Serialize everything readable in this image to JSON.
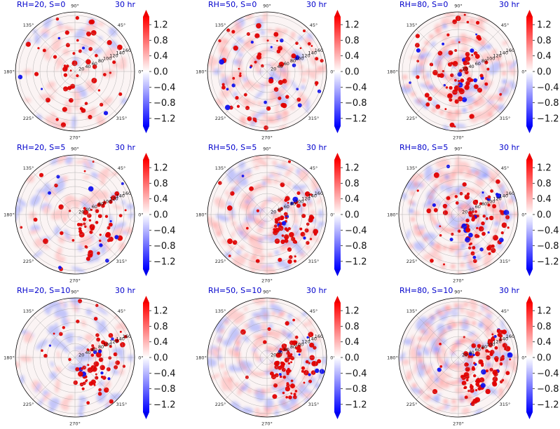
{
  "figure": {
    "time_label": "30 hr",
    "colorbar": {
      "colormap": "bwr",
      "vmin": -1.4,
      "vmax": 1.4,
      "extend": "both",
      "ticks": [
        1.2,
        0.8,
        0.4,
        0.0,
        -0.4,
        -0.8,
        -1.2
      ],
      "tick_labels": [
        "1.2",
        "0.8",
        "0.4",
        "0.0",
        "−0.4",
        "−0.8",
        "−1.2"
      ]
    },
    "polar_axes": {
      "angle_labels": [
        "90°",
        "45°",
        "0°",
        "315°",
        "270°",
        "225°",
        "180°",
        "135°"
      ],
      "radial_labels": [
        "20",
        "40",
        "60",
        "80",
        "100",
        "120",
        "140",
        "160"
      ]
    }
  },
  "chart_data": [
    {
      "type": "heatmap",
      "title": "RH=20, S=0",
      "time": "30 hr",
      "relative_humidity": 20,
      "shear": 0
    },
    {
      "type": "heatmap",
      "title": "RH=50, S=0",
      "time": "30 hr",
      "relative_humidity": 50,
      "shear": 0
    },
    {
      "type": "heatmap",
      "title": "RH=80, S=0",
      "time": "30 hr",
      "relative_humidity": 80,
      "shear": 0
    },
    {
      "type": "heatmap",
      "title": "RH=20, S=5",
      "time": "30 hr",
      "relative_humidity": 20,
      "shear": 5
    },
    {
      "type": "heatmap",
      "title": "RH=50, S=5",
      "time": "30 hr",
      "relative_humidity": 50,
      "shear": 5
    },
    {
      "type": "heatmap",
      "title": "RH=80, S=5",
      "time": "30 hr",
      "relative_humidity": 80,
      "shear": 5
    },
    {
      "type": "heatmap",
      "title": "RH=20, S=10",
      "time": "30 hr",
      "relative_humidity": 20,
      "shear": 10
    },
    {
      "type": "heatmap",
      "title": "RH=50, S=10",
      "time": "30 hr",
      "relative_humidity": 50,
      "shear": 10
    },
    {
      "type": "heatmap",
      "title": "RH=80, S=10",
      "time": "30 hr",
      "relative_humidity": 80,
      "shear": 10
    }
  ]
}
